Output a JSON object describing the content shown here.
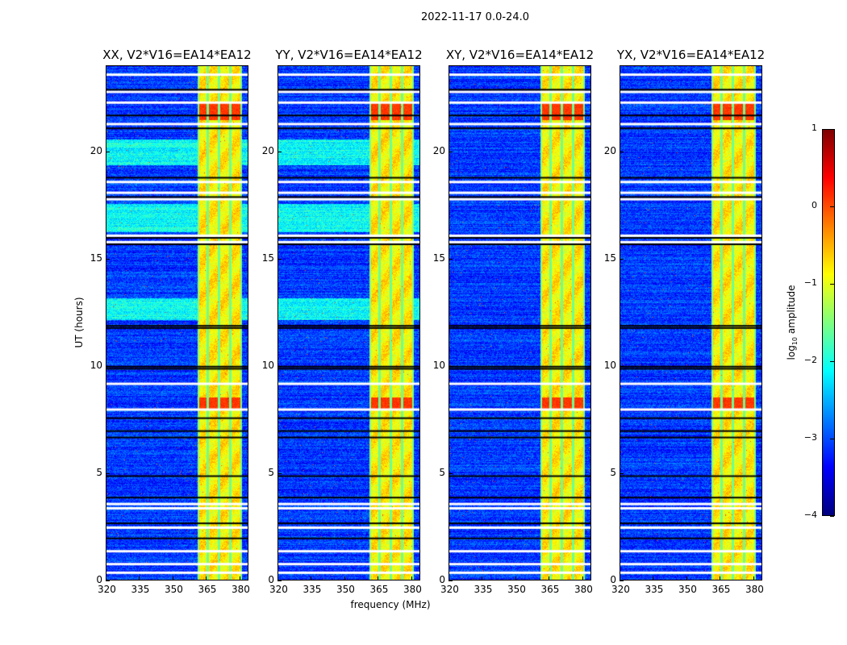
{
  "chart_data": {
    "type": "heatmap",
    "title": "2022-11-17 0.0-24.0",
    "xlabel": "frequency (MHz)",
    "ylabel": "UT (hours)",
    "xlim": [
      320,
      384
    ],
    "ylim": [
      0,
      24
    ],
    "xticks": [
      320,
      335,
      350,
      365,
      380
    ],
    "yticks": [
      0,
      5,
      10,
      15,
      20
    ],
    "panels": [
      {
        "title": "XX, V2*V16=EA14*EA12",
        "key": "XX",
        "parallel_hand": true
      },
      {
        "title": "YY, V2*V16=EA14*EA12",
        "key": "YY",
        "parallel_hand": true
      },
      {
        "title": "XY, V2*V16=EA14*EA12",
        "key": "XY",
        "parallel_hand": false
      },
      {
        "title": "YX, V2*V16=EA14*EA12",
        "key": "YX",
        "parallel_hand": false
      }
    ],
    "colorbar": {
      "label_prefix": "log",
      "label_sub": "10",
      "label_suffix": " amplitude",
      "range": [
        -4,
        1
      ],
      "ticks": [
        "1",
        "0",
        "−1",
        "−2",
        "−3",
        "−4"
      ],
      "tick_values": [
        1,
        0,
        -1,
        -2,
        -3,
        -4
      ],
      "colormap": "jet"
    },
    "background_log_amp": -3.1,
    "strong_band_mhz": [
      360.7,
      380.4
    ],
    "strong_band_log_amp": -0.8,
    "band_gap_channels_mhz": [
      365.3,
      370.2,
      375.3
    ],
    "elevated_time_ranges_hours": [
      [
        19.4,
        20.6
      ],
      [
        16.3,
        17.6
      ],
      [
        12.2,
        13.2
      ]
    ],
    "rfi_bursts_hours": [
      [
        21.5,
        22.3
      ],
      [
        8.0,
        8.6
      ]
    ],
    "flagged_hours_white": [
      23.6,
      22.8,
      22.3,
      21.3,
      18.6,
      18.1,
      17.8,
      16.1,
      15.8,
      9.2,
      8.0,
      3.6,
      3.4,
      2.5,
      1.4,
      0.8,
      0.4
    ],
    "flagged_hours_black": [
      22.9,
      21.7,
      21.1,
      18.8,
      17.9,
      16.0,
      15.7,
      11.9,
      11.8,
      10.0,
      9.9,
      7.6,
      7.0,
      6.7,
      4.9,
      3.9,
      2.7,
      2.0
    ]
  }
}
